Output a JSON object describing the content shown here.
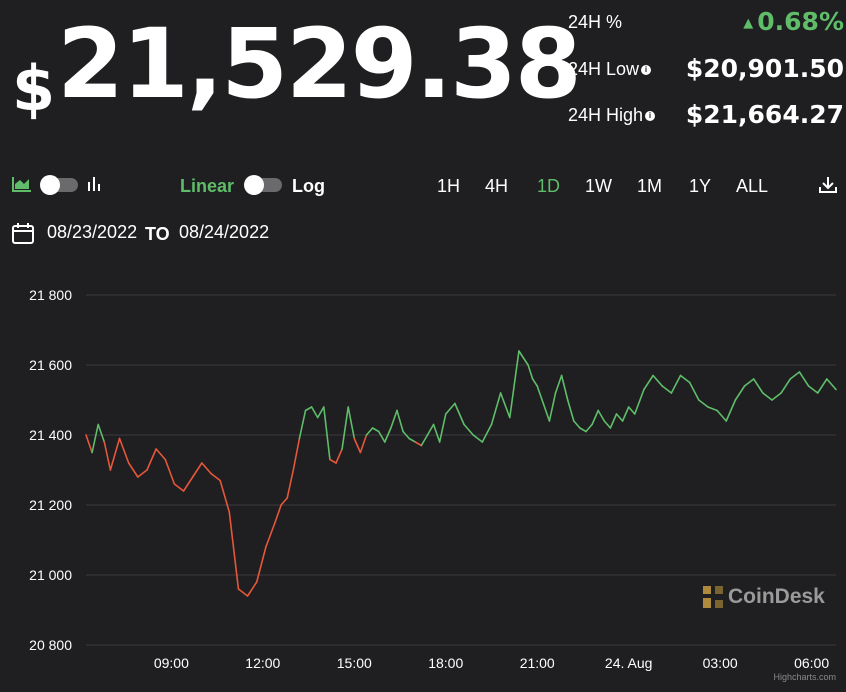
{
  "price": {
    "currency": "$",
    "value": "21,529.38"
  },
  "stats": {
    "change_label": "24H %",
    "change_value": "0.68%",
    "low_label": "24H Low",
    "low_value": "$20,901.50",
    "high_label": "24H High",
    "high_value": "$21,664.27"
  },
  "controls": {
    "chart_type_left_icon": "area-chart-icon",
    "chart_type_right_icon": "candlestick-icon",
    "scale_linear": "Linear",
    "scale_log": "Log",
    "ranges": [
      "1H",
      "4H",
      "1D",
      "1W",
      "1M",
      "1Y",
      "ALL"
    ],
    "active_range": "1D",
    "download_icon": "download-icon"
  },
  "dates": {
    "from": "08/23/2022",
    "to_label": "TO",
    "to": "08/24/2022",
    "calendar_icon": "calendar-icon"
  },
  "brand": {
    "name": "CoinDesk",
    "credit": "Highcharts.com"
  },
  "colors": {
    "up": "#5fbd6a",
    "down": "#e5573a",
    "background": "#1f1e20",
    "grid": "#3c3b3e"
  },
  "chart_data": {
    "type": "line",
    "ylim": [
      20800,
      21800
    ],
    "yticks": [
      20800,
      21000,
      21200,
      21400,
      21600,
      21800
    ],
    "ytick_labels": [
      "20 800",
      "21 000",
      "21 200",
      "21 400",
      "21 600",
      "21 800"
    ],
    "xtick_labels": [
      "09:00",
      "12:00",
      "15:00",
      "18:00",
      "21:00",
      "24. Aug",
      "03:00",
      "06:00"
    ],
    "xtick_hours": [
      9,
      12,
      15,
      18,
      21,
      24,
      27,
      30
    ],
    "xlim_hours": [
      6.2,
      30.8
    ],
    "reference_price": 21385,
    "series": [
      {
        "x_hours": [
          6.2,
          6.4,
          6.6,
          6.8,
          7.0,
          7.3,
          7.6,
          7.9,
          8.2,
          8.5,
          8.8,
          9.1,
          9.4,
          9.7,
          10.0,
          10.3,
          10.6,
          10.9,
          11.2,
          11.5,
          11.8,
          12.1,
          12.4,
          12.6,
          12.8,
          13.0,
          13.2,
          13.4,
          13.6,
          13.8,
          14.0,
          14.2,
          14.4,
          14.6,
          14.8,
          15.0,
          15.2,
          15.4,
          15.6,
          15.8,
          16.0,
          16.2,
          16.4,
          16.6,
          16.8,
          17.0,
          17.2,
          17.4,
          17.6,
          17.8,
          18.0,
          18.3,
          18.6,
          18.9,
          19.2,
          19.5,
          19.8,
          20.1,
          20.4,
          20.7,
          20.85,
          21.0,
          21.2,
          21.4,
          21.6,
          21.8,
          22.0,
          22.2,
          22.4,
          22.6,
          22.8,
          23.0,
          23.2,
          23.4,
          23.6,
          23.8,
          24.0,
          24.2,
          24.5,
          24.8,
          25.1,
          25.4,
          25.7,
          26.0,
          26.3,
          26.6,
          26.9,
          27.2,
          27.5,
          27.8,
          28.1,
          28.4,
          28.7,
          29.0,
          29.3,
          29.6,
          29.9,
          30.2,
          30.5,
          30.8
        ],
        "values": [
          21400,
          21350,
          21430,
          21380,
          21300,
          21390,
          21320,
          21280,
          21300,
          21360,
          21330,
          21260,
          21240,
          21280,
          21320,
          21290,
          21270,
          21180,
          20960,
          20940,
          20980,
          21080,
          21150,
          21200,
          21220,
          21300,
          21390,
          21470,
          21480,
          21450,
          21480,
          21330,
          21320,
          21360,
          21480,
          21390,
          21350,
          21400,
          21420,
          21410,
          21380,
          21420,
          21470,
          21410,
          21390,
          21380,
          21370,
          21400,
          21430,
          21380,
          21460,
          21490,
          21430,
          21400,
          21380,
          21430,
          21520,
          21450,
          21640,
          21600,
          21560,
          21540,
          21490,
          21440,
          21520,
          21570,
          21500,
          21440,
          21420,
          21410,
          21430,
          21470,
          21440,
          21420,
          21460,
          21440,
          21480,
          21460,
          21530,
          21570,
          21540,
          21520,
          21570,
          21550,
          21500,
          21480,
          21470,
          21440,
          21500,
          21540,
          21560,
          21520,
          21500,
          21520,
          21560,
          21580,
          21540,
          21520,
          21560,
          21530
        ]
      }
    ]
  }
}
